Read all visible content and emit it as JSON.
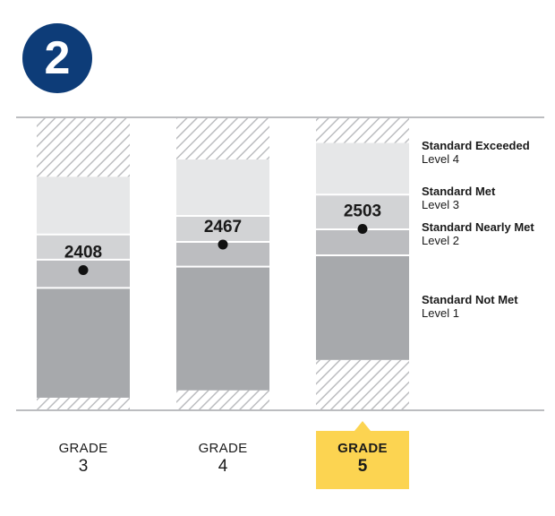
{
  "badge": {
    "number": "2",
    "color": "#0d3c78"
  },
  "chart_data": {
    "type": "bar",
    "subtype": "stacked-range",
    "categories": [
      "GRADE 3",
      "GRADE 4",
      "GRADE 5"
    ],
    "grades": [
      {
        "word": "GRADE",
        "number": "3",
        "score": 2408,
        "score_label": "2408",
        "highlighted": false,
        "bands": {
          "level1": [
            2114,
            2367
          ],
          "level2": [
            2367,
            2432
          ],
          "level3": [
            2432,
            2490
          ],
          "level4": [
            2490,
            2623
          ]
        }
      },
      {
        "word": "GRADE",
        "number": "4",
        "score": 2467,
        "score_label": "2467",
        "highlighted": false,
        "bands": {
          "level1": [
            2131,
            2416
          ],
          "level2": [
            2416,
            2473
          ],
          "level3": [
            2473,
            2533
          ],
          "level4": [
            2533,
            2663
          ]
        }
      },
      {
        "word": "GRADE",
        "number": "5",
        "score": 2503,
        "score_label": "2503",
        "highlighted": true,
        "bands": {
          "level1": [
            2201,
            2442
          ],
          "level2": [
            2442,
            2502
          ],
          "level3": [
            2502,
            2582
          ],
          "level4": [
            2582,
            2701
          ]
        }
      }
    ],
    "ylim": [
      2085,
      2760
    ],
    "colors": {
      "level1": "#a7a9ac",
      "level2": "#bcbdc0",
      "level3": "#d2d3d5",
      "level4": "#e6e7e8",
      "hatch": "#bcbdc0",
      "rule": "#bcbdc0",
      "highlight": "#fcd451",
      "marker": "#111111"
    },
    "legend": [
      {
        "title": "Standard Exceeded",
        "level": "Level 4"
      },
      {
        "title": "Standard Met",
        "level": "Level 3"
      },
      {
        "title": "Standard Nearly Met",
        "level": "Level 2"
      },
      {
        "title": "Standard Not Met",
        "level": "Level 1"
      }
    ]
  }
}
